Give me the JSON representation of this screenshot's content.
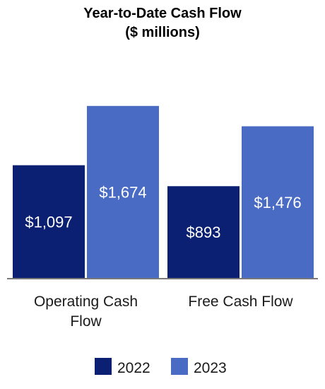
{
  "chart_data": {
    "type": "bar",
    "title": "Year-to-Date Cash Flow",
    "subtitle": "($ millions)",
    "categories": [
      "Operating Cash Flow",
      "Free Cash Flow"
    ],
    "series": [
      {
        "name": "2022",
        "values": [
          1097,
          893
        ],
        "labels": [
          "$1,097",
          "$893"
        ],
        "color": "#0b1f73"
      },
      {
        "name": "2023",
        "values": [
          1674,
          1476
        ],
        "labels": [
          "$1,674",
          "$1,476"
        ],
        "color": "#4a6bc4"
      }
    ],
    "ylim": [
      0,
      1700
    ],
    "grid": false,
    "legend_position": "bottom"
  }
}
